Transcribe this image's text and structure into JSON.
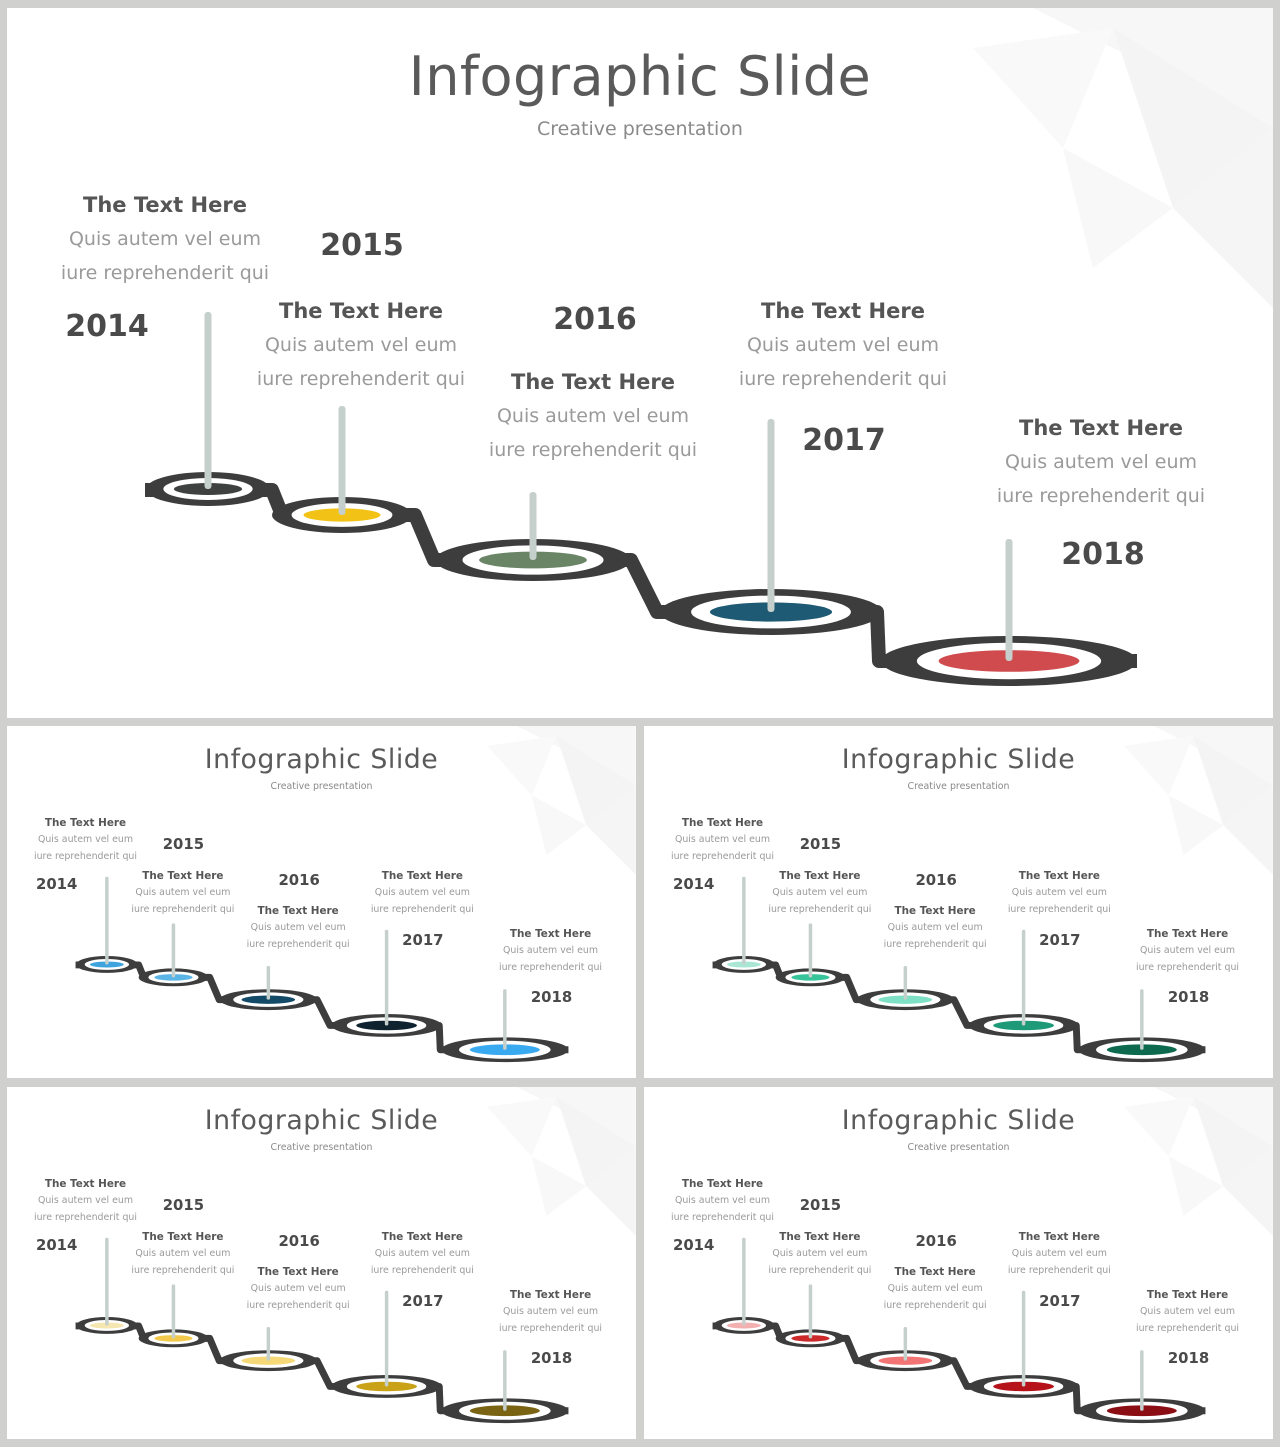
{
  "slides": [
    {
      "title": "Infographic Slide",
      "subtitle": "Creative presentation",
      "colors": [
        "#3f4040",
        "#f2c316",
        "#6a8466",
        "#1e5a73",
        "#cf4b4d"
      ],
      "milestones": [
        {
          "year": "2014",
          "heading": "The Text Here",
          "line1": "Quis autem vel eum",
          "line2": "iure reprehenderit qui"
        },
        {
          "year": "2015",
          "heading": "The Text Here",
          "line1": "Quis autem vel eum",
          "line2": "iure reprehenderit qui"
        },
        {
          "year": "2016",
          "heading": "The Text Here",
          "line1": "Quis autem vel eum",
          "line2": "iure reprehenderit qui"
        },
        {
          "year": "2017",
          "heading": "The Text Here",
          "line1": "Quis autem vel eum",
          "line2": "iure reprehenderit qui"
        },
        {
          "year": "2018",
          "heading": "The Text Here",
          "line1": "Quis autem vel eum",
          "line2": "iure reprehenderit qui"
        }
      ]
    },
    {
      "title": "Infographic Slide",
      "subtitle": "Creative presentation",
      "colors": [
        "#3fa4de",
        "#5ab4e6",
        "#134a68",
        "#0f2230",
        "#3aaaf0"
      ],
      "milestones": [
        {
          "year": "2014",
          "heading": "The Text Here",
          "line1": "Quis autem vel eum",
          "line2": "iure reprehenderit qui"
        },
        {
          "year": "2015",
          "heading": "The Text Here",
          "line1": "Quis autem vel eum",
          "line2": "iure reprehenderit qui"
        },
        {
          "year": "2016",
          "heading": "The Text Here",
          "line1": "Quis autem vel eum",
          "line2": "iure reprehenderit qui"
        },
        {
          "year": "2017",
          "heading": "The Text Here",
          "line1": "Quis autem vel eum",
          "line2": "iure reprehenderit qui"
        },
        {
          "year": "2018",
          "heading": "The Text Here",
          "line1": "Quis autem vel eum",
          "line2": "iure reprehenderit qui"
        }
      ]
    },
    {
      "title": "Infographic Slide",
      "subtitle": "Creative presentation",
      "colors": [
        "#a9e6d4",
        "#37c49a",
        "#7ee0c4",
        "#1f9a78",
        "#0e6a4e"
      ],
      "milestones": [
        {
          "year": "2014",
          "heading": "The Text Here",
          "line1": "Quis autem vel eum",
          "line2": "iure reprehenderit qui"
        },
        {
          "year": "2015",
          "heading": "The Text Here",
          "line1": "Quis autem vel eum",
          "line2": "iure reprehenderit qui"
        },
        {
          "year": "2016",
          "heading": "The Text Here",
          "line1": "Quis autem vel eum",
          "line2": "iure reprehenderit qui"
        },
        {
          "year": "2017",
          "heading": "The Text Here",
          "line1": "Quis autem vel eum",
          "line2": "iure reprehenderit qui"
        },
        {
          "year": "2018",
          "heading": "The Text Here",
          "line1": "Quis autem vel eum",
          "line2": "iure reprehenderit qui"
        }
      ]
    },
    {
      "title": "Infographic Slide",
      "subtitle": "Creative presentation",
      "colors": [
        "#f6e6b0",
        "#f2c94c",
        "#f5d978",
        "#c9a218",
        "#7a6414"
      ],
      "milestones": [
        {
          "year": "2014",
          "heading": "The Text Here",
          "line1": "Quis autem vel eum",
          "line2": "iure reprehenderit qui"
        },
        {
          "year": "2015",
          "heading": "The Text Here",
          "line1": "Quis autem vel eum",
          "line2": "iure reprehenderit qui"
        },
        {
          "year": "2016",
          "heading": "The Text Here",
          "line1": "Quis autem vel eum",
          "line2": "iure reprehenderit qui"
        },
        {
          "year": "2017",
          "heading": "The Text Here",
          "line1": "Quis autem vel eum",
          "line2": "iure reprehenderit qui"
        },
        {
          "year": "2018",
          "heading": "The Text Here",
          "line1": "Quis autem vel eum",
          "line2": "iure reprehenderit qui"
        }
      ]
    },
    {
      "title": "Infographic Slide",
      "subtitle": "Creative presentation",
      "colors": [
        "#f2b0b0",
        "#cc2a2a",
        "#f27474",
        "#b5121a",
        "#8a0e14"
      ],
      "milestones": [
        {
          "year": "2014",
          "heading": "The Text Here",
          "line1": "Quis autem vel eum",
          "line2": "iure reprehenderit qui"
        },
        {
          "year": "2015",
          "heading": "The Text Here",
          "line1": "Quis autem vel eum",
          "line2": "iure reprehenderit qui"
        },
        {
          "year": "2016",
          "heading": "The Text Here",
          "line1": "Quis autem vel eum",
          "line2": "iure reprehenderit qui"
        },
        {
          "year": "2017",
          "heading": "The Text Here",
          "line1": "Quis autem vel eum",
          "line2": "iure reprehenderit qui"
        },
        {
          "year": "2018",
          "heading": "The Text Here",
          "line1": "Quis autem vel eum",
          "line2": "iure reprehenderit qui"
        }
      ]
    }
  ]
}
